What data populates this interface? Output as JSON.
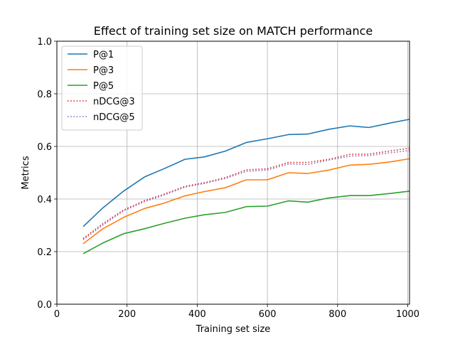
{
  "chart_data": {
    "type": "line",
    "title": "Effect of training set size on MATCH performance",
    "xlabel": "Training set size",
    "ylabel": "Metrics",
    "xlim": [
      0,
      1005
    ],
    "ylim": [
      0,
      1.0
    ],
    "xticks": [
      0,
      200,
      400,
      600,
      800,
      1000
    ],
    "yticks": [
      0.0,
      0.2,
      0.4,
      0.6,
      0.8,
      1.0
    ],
    "xtick_labels": [
      "0",
      "200",
      "400",
      "600",
      "800",
      "1000"
    ],
    "ytick_labels": [
      "0.0",
      "0.2",
      "0.4",
      "0.6",
      "0.8",
      "1.0"
    ],
    "grid": true,
    "legend_position": "upper-left",
    "x": [
      75,
      130,
      190,
      250,
      305,
      365,
      420,
      480,
      540,
      600,
      660,
      715,
      775,
      835,
      890,
      950,
      1005
    ],
    "series": [
      {
        "name": "P@1",
        "color": "#1f77b4",
        "style": "solid",
        "values": [
          0.295,
          0.365,
          0.43,
          0.484,
          0.515,
          0.551,
          0.56,
          0.582,
          0.615,
          0.629,
          0.645,
          0.647,
          0.665,
          0.678,
          0.672,
          0.689,
          0.703
        ]
      },
      {
        "name": "P@3",
        "color": "#ff7f0e",
        "style": "solid",
        "values": [
          0.23,
          0.286,
          0.33,
          0.364,
          0.384,
          0.412,
          0.428,
          0.443,
          0.473,
          0.473,
          0.5,
          0.497,
          0.51,
          0.529,
          0.532,
          0.541,
          0.553
        ]
      },
      {
        "name": "P@5",
        "color": "#2ca02c",
        "style": "solid",
        "values": [
          0.192,
          0.232,
          0.268,
          0.287,
          0.307,
          0.327,
          0.34,
          0.349,
          0.371,
          0.373,
          0.393,
          0.388,
          0.404,
          0.413,
          0.413,
          0.421,
          0.43
        ]
      },
      {
        "name": "nDCG@3",
        "color": "#d62728",
        "style": "dotted",
        "values": [
          0.25,
          0.305,
          0.358,
          0.394,
          0.418,
          0.448,
          0.462,
          0.481,
          0.511,
          0.515,
          0.539,
          0.539,
          0.551,
          0.57,
          0.571,
          0.583,
          0.593
        ]
      },
      {
        "name": "nDCG@5",
        "color": "#9467bd",
        "style": "dotted",
        "values": [
          0.245,
          0.3,
          0.355,
          0.39,
          0.415,
          0.445,
          0.459,
          0.478,
          0.505,
          0.51,
          0.533,
          0.531,
          0.548,
          0.563,
          0.565,
          0.576,
          0.584
        ]
      }
    ]
  }
}
